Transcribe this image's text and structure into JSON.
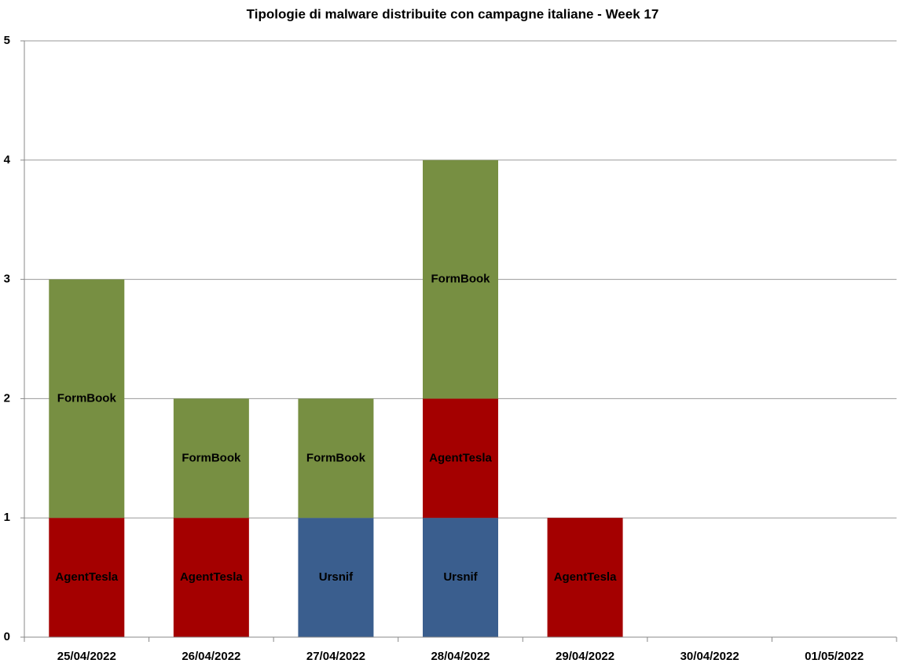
{
  "chart_data": {
    "type": "stacked_bar",
    "title": "Tipologie di malware distribuite con campagne italiane - Week 17",
    "categories": [
      "25/04/2022",
      "26/04/2022",
      "27/04/2022",
      "28/04/2022",
      "29/04/2022",
      "30/04/2022",
      "01/05/2022"
    ],
    "series": [
      {
        "name": "Ursnif",
        "color": "#3a5e8e",
        "values": [
          0,
          0,
          1,
          1,
          0,
          0,
          0
        ]
      },
      {
        "name": "AgentTesla",
        "color": "#a40000",
        "values": [
          1,
          1,
          0,
          1,
          1,
          0,
          0
        ]
      },
      {
        "name": "FormBook",
        "color": "#778f42",
        "values": [
          2,
          1,
          1,
          2,
          0,
          0,
          0
        ]
      }
    ],
    "ylim": [
      0,
      5
    ],
    "yticks": [
      0,
      1,
      2,
      3,
      4,
      5
    ],
    "grid": true
  }
}
